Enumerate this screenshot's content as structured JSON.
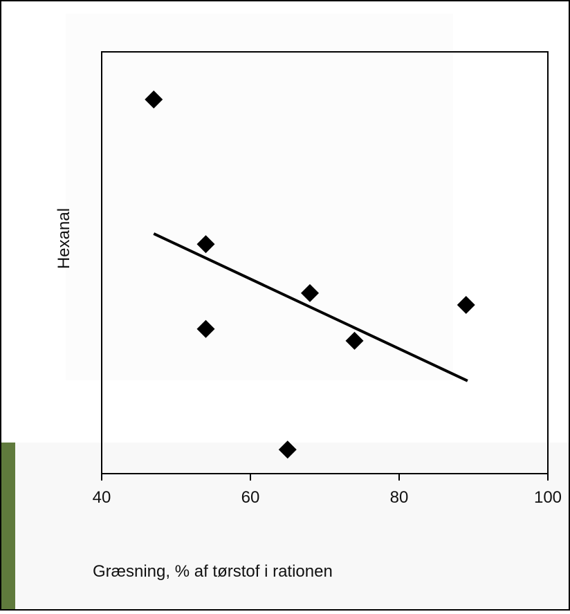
{
  "chart_data": {
    "type": "scatter",
    "x_label": "Græsning, % af tørstof i rationen",
    "y_label": "Hexanal",
    "x": [
      47,
      54,
      54,
      68,
      74,
      89,
      65
    ],
    "values": [
      88.7,
      54.4,
      34.3,
      42.8,
      31.5,
      40.0,
      5.7
    ],
    "color": "#000000",
    "trendline": {
      "x": [
        47,
        89.2
      ],
      "values": [
        56.9,
        22.0
      ]
    },
    "xlim": [
      40,
      100
    ],
    "xticks": [
      40,
      60,
      80,
      100
    ],
    "ylim": [
      0,
      100
    ]
  }
}
